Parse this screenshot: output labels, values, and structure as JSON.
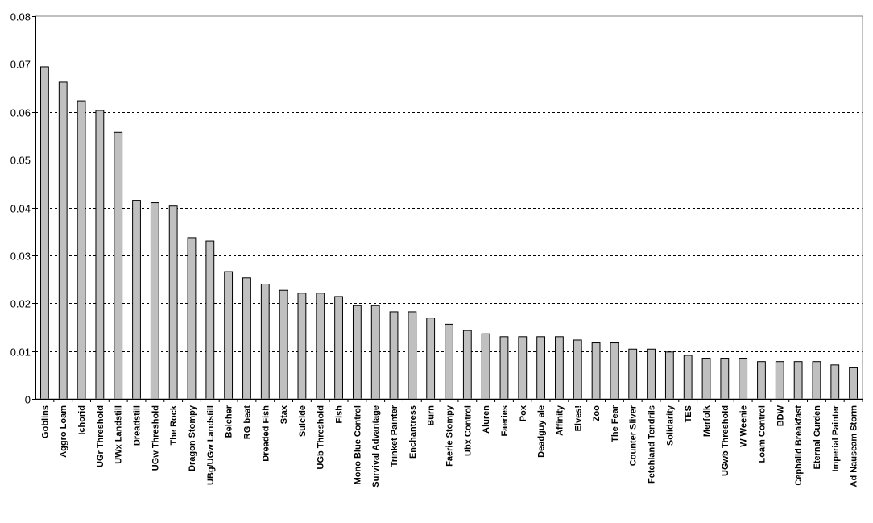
{
  "chart_data": {
    "type": "bar",
    "title": "",
    "xlabel": "",
    "ylabel": "",
    "ylim": [
      0,
      0.08
    ],
    "yticks": [
      0,
      0.01,
      0.02,
      0.03,
      0.04,
      0.05,
      0.06,
      0.07,
      0.08
    ],
    "ytick_labels": [
      "0",
      "0.01",
      "0.02",
      "0.03",
      "0.04",
      "0.05",
      "0.06",
      "0.07",
      "0.08"
    ],
    "grid": "horizontal dashed",
    "legend": "none",
    "bar_color": "#c0c0c0",
    "bar_edge_color": "#000000",
    "categories": [
      "Goblins",
      "Aggro Loam",
      "Ichorid",
      "UGr Threshold",
      "UWx Landstill",
      "Dreadstill",
      "UGw Threshold",
      "The Rock",
      "Dragon Stompy",
      "UBg/UGw Landstill",
      "Belcher",
      "RG beat",
      "Dreaded Fish",
      "Stax",
      "Suicide",
      "UGb Threshold",
      "Fish",
      "Mono Blue Control",
      "Survival Advantage",
      "Trinket Painter",
      "Enchantress",
      "Burn",
      "Faerie Stompy",
      "Ubx Control",
      "Aluren",
      "Faeries",
      "Pox",
      "Deadguy ale",
      "Affinity",
      "Elves!",
      "Zoo",
      "The Fear",
      "Counter Sliver",
      "Fetchland Tendrils",
      "Solidarity",
      "TES",
      "Merfolk",
      "UGwb Threshold",
      "W Weenie",
      "Loam Control",
      "BDW",
      "Cephalid Breakfast",
      "Eternal Gurden",
      "Imperial Painter",
      "Ad Nauseam Storm"
    ],
    "values": [
      0.0694,
      0.0662,
      0.0623,
      0.0603,
      0.0557,
      0.0415,
      0.041,
      0.0403,
      0.0337,
      0.033,
      0.0266,
      0.0253,
      0.024,
      0.0227,
      0.0221,
      0.0221,
      0.0214,
      0.0195,
      0.0195,
      0.0182,
      0.0182,
      0.0169,
      0.0156,
      0.0143,
      0.0136,
      0.013,
      0.013,
      0.013,
      0.013,
      0.0123,
      0.0117,
      0.0117,
      0.0104,
      0.0104,
      0.0098,
      0.0091,
      0.0085,
      0.0085,
      0.0085,
      0.0078,
      0.0078,
      0.0078,
      0.0078,
      0.0071,
      0.0065
    ]
  }
}
